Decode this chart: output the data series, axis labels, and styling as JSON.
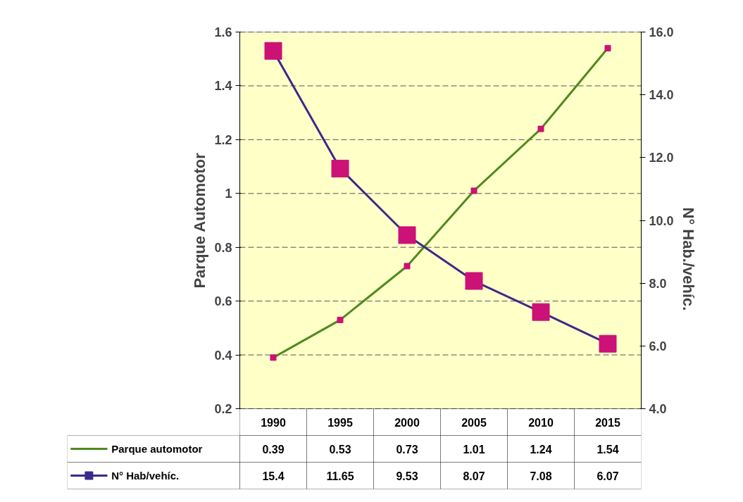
{
  "chart_data": {
    "type": "line",
    "categories": [
      "1990",
      "1995",
      "2000",
      "2005",
      "2010",
      "2015"
    ],
    "ylabel": "Parque Automotor",
    "y2label": "N° Hab./vehíc.",
    "ylim": [
      0.2,
      1.6
    ],
    "yticks": [
      0.2,
      0.4,
      0.6,
      0.8,
      1,
      1.2,
      1.4,
      1.6
    ],
    "y2lim": [
      4.0,
      16.0
    ],
    "y2ticks": [
      {
        "value": 4,
        "label": "4.0"
      },
      {
        "value": 6,
        "label": "6.0"
      },
      {
        "value": 8,
        "label": "8.0"
      },
      {
        "value": 10,
        "label": "10.0"
      },
      {
        "value": 12,
        "label": "12.0"
      },
      {
        "value": 14,
        "label": "14.0"
      },
      {
        "value": 16,
        "label": "16.0"
      }
    ],
    "grid": "y",
    "legend": "bottom",
    "data_labels": true,
    "series": [
      {
        "name": "Parque automotor",
        "color": "#4f8a1e",
        "marker": "square",
        "values": [
          0.39,
          0.53,
          0.73,
          1.01,
          1.24,
          1.54
        ]
      },
      {
        "name": "N° Hab/vehíc.",
        "color": "#3b2a8a",
        "marker": "square",
        "axis": "y2",
        "values": [
          15.4,
          11.65,
          9.53,
          8.07,
          7.08,
          6.07
        ]
      }
    ]
  }
}
